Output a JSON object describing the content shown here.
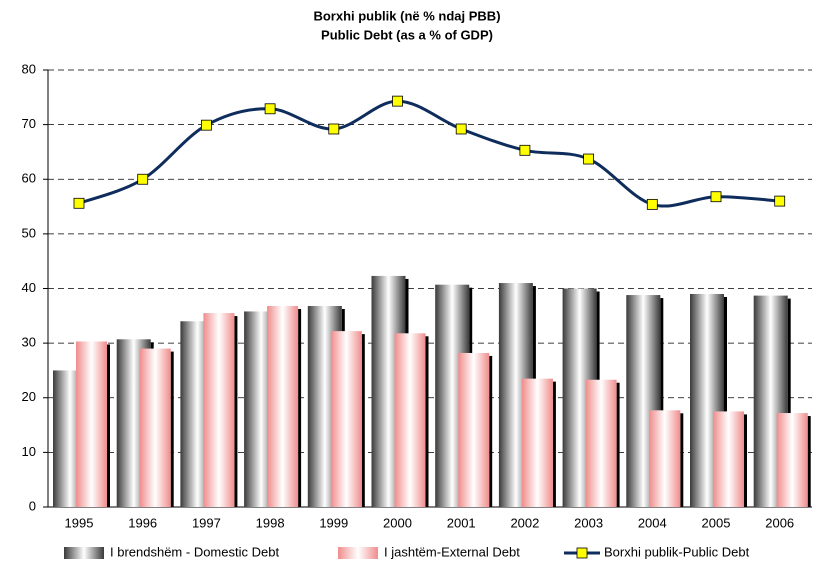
{
  "chart_data": {
    "type": "bar-line",
    "title": "Borxhi publik (në % ndaj PBB)",
    "subtitle": "Public Debt (as a % of GDP)",
    "categories": [
      "1995",
      "1996",
      "1997",
      "1998",
      "1999",
      "2000",
      "2001",
      "2002",
      "2003",
      "2004",
      "2005",
      "2006"
    ],
    "series": [
      {
        "name": "I brendshëm - Domestic Debt",
        "type": "bar",
        "color": "#7a7a7a",
        "values": [
          25,
          30.7,
          34,
          35.8,
          36.8,
          42.3,
          40.7,
          41,
          40,
          38.8,
          39,
          38.7
        ]
      },
      {
        "name": "I jashtëm-External Debt",
        "type": "bar",
        "color": "#f4a6a6",
        "values": [
          30.3,
          29,
          35.5,
          36.8,
          32.2,
          31.8,
          28.2,
          23.5,
          23.3,
          17.7,
          17.5,
          17.2
        ]
      },
      {
        "name": "Borxhi publik-Public Debt",
        "type": "line",
        "color": "#0f2d5c",
        "marker_color": "#ffff00",
        "values": [
          55.6,
          60,
          69.9,
          72.9,
          69.2,
          74.3,
          69.2,
          65.3,
          63.7,
          55.4,
          56.8,
          56
        ]
      }
    ],
    "ylim": [
      0,
      80
    ],
    "yticks": [
      0,
      10,
      20,
      30,
      40,
      50,
      60,
      70,
      80
    ],
    "grid": true,
    "legend": "bottom"
  }
}
